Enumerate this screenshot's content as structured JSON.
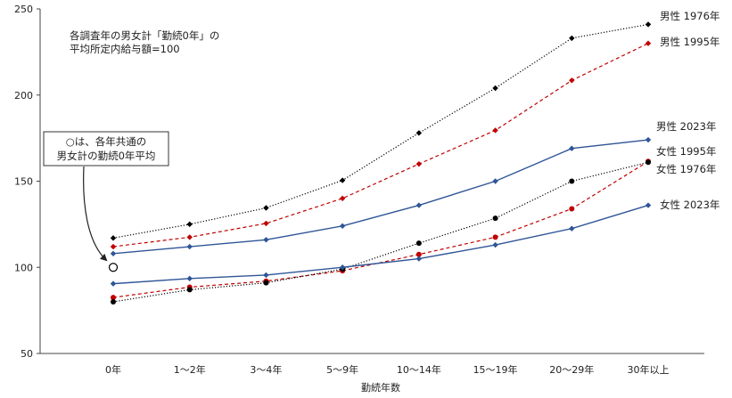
{
  "chart_data": {
    "type": "line",
    "xlabel": "勤続年数",
    "ylabel": "",
    "ylim": [
      50,
      250
    ],
    "yticks": [
      50,
      100,
      150,
      200,
      250
    ],
    "grid": false,
    "categories": [
      "0年",
      "1～2年",
      "3～4年",
      "5～9年",
      "10～14年",
      "15～19年",
      "20～29年",
      "30年以上"
    ],
    "series": [
      {
        "name": "男性 1976年",
        "color": "#000000",
        "dash": "dotted",
        "marker": "diamond",
        "values": [
          117,
          125,
          134.5,
          150.5,
          178,
          204,
          233,
          241
        ]
      },
      {
        "name": "男性 1995年",
        "color": "#c00000",
        "dash": "dashed",
        "marker": "diamond",
        "values": [
          112,
          117.5,
          125.5,
          140,
          160,
          179.5,
          208.5,
          230
        ]
      },
      {
        "name": "男性 2023年",
        "color": "#2f5597",
        "dash": "solid",
        "marker": "diamond",
        "values": [
          108,
          112,
          116,
          124,
          136,
          150,
          169,
          174
        ]
      },
      {
        "name": "女性 1995年",
        "color": "#c00000",
        "dash": "dashed",
        "marker": "circle",
        "values": [
          82.5,
          88.5,
          92,
          98,
          107.5,
          117.5,
          134,
          161.5
        ]
      },
      {
        "name": "女性 1976年",
        "color": "#000000",
        "dash": "dotted",
        "marker": "circle",
        "values": [
          80,
          87,
          91,
          99,
          114,
          128.5,
          150,
          161
        ]
      },
      {
        "name": "女性 2023年",
        "color": "#2f5597",
        "dash": "solid",
        "marker": "diamond",
        "values": [
          90.5,
          93.5,
          95.5,
          100,
          105,
          113,
          122.5,
          136
        ]
      }
    ],
    "reference_point": {
      "category": "0年",
      "value": 100
    },
    "annotations": {
      "note": [
        "各調査年の男女計「勤続0年」の",
        "平均所定内給与額=100"
      ],
      "callout": [
        "○は、各年共通の",
        "男女計の勤続0年平均"
      ]
    }
  }
}
